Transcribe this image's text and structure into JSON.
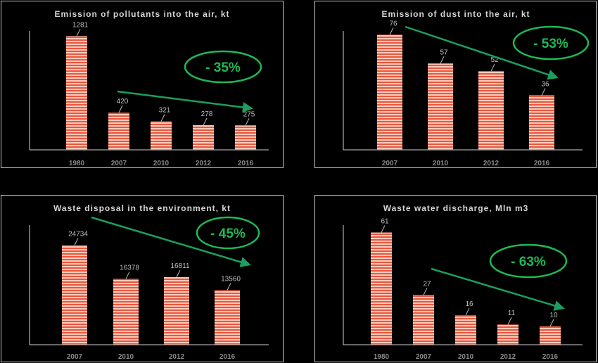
{
  "chart_data": [
    {
      "type": "bar",
      "title": "Emission of pollutants into the air, kt",
      "categories": [
        "1980",
        "2007",
        "2010",
        "2012",
        "2016"
      ],
      "values": [
        1281,
        420,
        321,
        278,
        275
      ],
      "value_labels": [
        "1281",
        "420",
        "321",
        "278",
        "275"
      ],
      "annotation": "- 35%",
      "ylim": [
        0,
        1450
      ],
      "grid": false
    },
    {
      "type": "bar",
      "title": "Emission of dust into the air, kt",
      "categories": [
        "2007",
        "2010",
        "2012",
        "2016"
      ],
      "values": [
        76,
        57,
        52,
        36
      ],
      "value_labels": [
        "76",
        "57",
        "52",
        "36"
      ],
      "annotation": "- 53%",
      "ylim": [
        0,
        85
      ],
      "grid": false
    },
    {
      "type": "bar",
      "title": "Waste disposal in the environment, kt",
      "categories": [
        "2007",
        "2010",
        "2012",
        "2016"
      ],
      "values": [
        24734,
        16378,
        16811,
        13560
      ],
      "value_labels": [
        "24734",
        "16378",
        "16811",
        "13560"
      ],
      "annotation": "- 45%",
      "ylim": [
        0,
        32000
      ],
      "grid": false
    },
    {
      "type": "bar",
      "title": "Waste water discharge, Mln m3",
      "categories": [
        "1980",
        "2007",
        "2010",
        "2012",
        "2016"
      ],
      "values": [
        61,
        27,
        16,
        11,
        10
      ],
      "value_labels": [
        "61",
        "27",
        "16",
        "11",
        "10"
      ],
      "annotation": "- 63%",
      "ylim": [
        0,
        70
      ],
      "grid": false
    }
  ],
  "colors": {
    "bar_stripe_a": "#f7b3a2",
    "bar_stripe_b": "#e8543d",
    "arrow": "#1a9f5e",
    "ellipse": "#1db954",
    "axis": "#cfcfcf",
    "panel_border": "#c9c9c9"
  }
}
